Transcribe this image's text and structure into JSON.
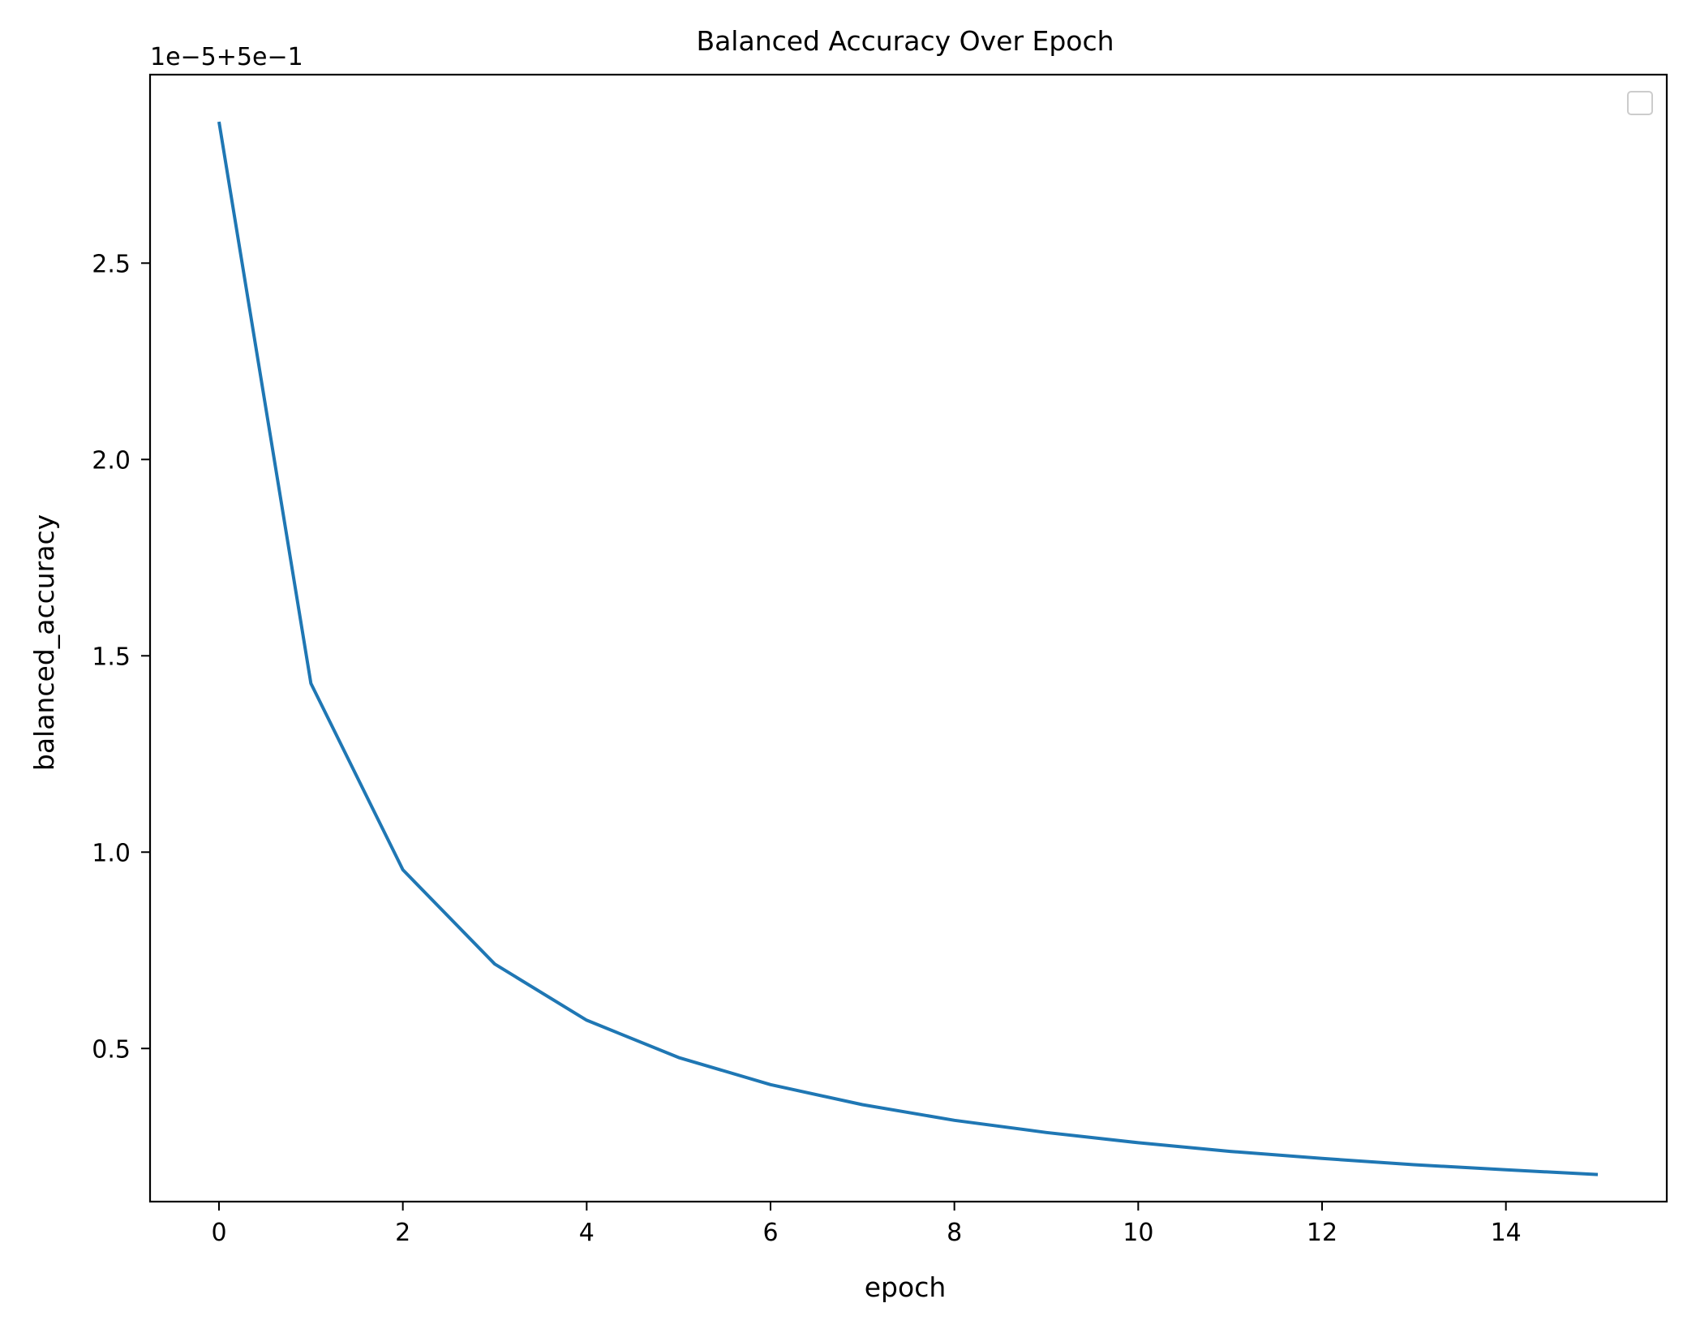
{
  "chart_data": {
    "type": "line",
    "title": "Balanced Accuracy Over Epoch",
    "xlabel": "epoch",
    "ylabel": "balanced_accuracy",
    "y_offset_label": "1e−5+5e−1",
    "xlim": [
      -0.75,
      15.75
    ],
    "ylim": [
      0.11,
      2.98
    ],
    "xticks": [
      0,
      2,
      4,
      6,
      8,
      10,
      12,
      14
    ],
    "xtick_labels": [
      "0",
      "2",
      "4",
      "6",
      "8",
      "10",
      "12",
      "14"
    ],
    "yticks": [
      0.5,
      1.0,
      1.5,
      2.0,
      2.5
    ],
    "ytick_labels": [
      "0.5",
      "1.0",
      "1.5",
      "2.0",
      "2.5"
    ],
    "grid": false,
    "legend": {
      "placement": "top-right",
      "entries": []
    },
    "series": [
      {
        "color": "#1f77b4",
        "x": [
          0,
          1,
          2,
          3,
          4,
          5,
          6,
          7,
          8,
          9,
          10,
          11,
          12,
          13,
          14,
          15
        ],
        "y": [
          2.86,
          1.43,
          0.955,
          0.715,
          0.572,
          0.477,
          0.408,
          0.357,
          0.317,
          0.286,
          0.26,
          0.238,
          0.22,
          0.204,
          0.191,
          0.179
        ]
      }
    ]
  }
}
